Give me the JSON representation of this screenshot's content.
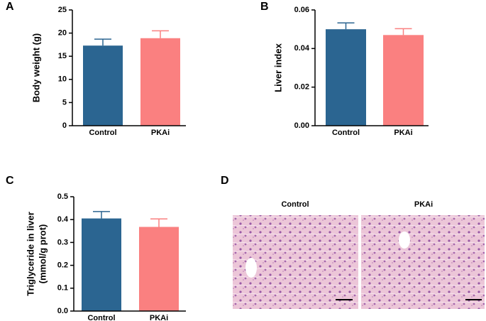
{
  "chart_data": [
    {
      "type": "bar",
      "panel_label": "A",
      "ylabel": "Body weight  (g)",
      "categories": [
        "Control",
        "PKAi"
      ],
      "values": [
        17.3,
        18.9
      ],
      "errors": [
        1.4,
        1.6
      ],
      "colors": [
        "#2b6591",
        "#fa8080"
      ],
      "ylim": [
        0,
        25
      ],
      "yticks": [
        0,
        5,
        10,
        15,
        20,
        25
      ]
    },
    {
      "type": "bar",
      "panel_label": "B",
      "ylabel": "Liver index",
      "categories": [
        "Control",
        "PKAi"
      ],
      "values": [
        0.05,
        0.047
      ],
      "errors": [
        0.0033,
        0.0033
      ],
      "colors": [
        "#2b6591",
        "#fa8080"
      ],
      "ylim": [
        0,
        0.06
      ],
      "yticks": [
        {
          "value": 0,
          "label": "0.00"
        },
        {
          "value": 0.02,
          "label": "0.02"
        },
        {
          "value": 0.04,
          "label": "0.04"
        },
        {
          "value": 0.06,
          "label": "0.06"
        }
      ]
    },
    {
      "type": "bar",
      "panel_label": "C",
      "ylabel": [
        "Triglyceride in liver",
        "(mmol/g prot)"
      ],
      "categories": [
        "Control",
        "PKAi"
      ],
      "values": [
        0.405,
        0.368
      ],
      "errors": [
        0.03,
        0.035
      ],
      "colors": [
        "#2b6591",
        "#fa8080"
      ],
      "ylim": [
        0,
        0.5
      ],
      "yticks": [
        {
          "value": 0,
          "label": "0.0"
        },
        0.1,
        0.2,
        0.3,
        0.4,
        0.5
      ]
    }
  ],
  "histology": {
    "panel_label": "D",
    "titles": [
      "Control",
      "PKAi"
    ]
  }
}
